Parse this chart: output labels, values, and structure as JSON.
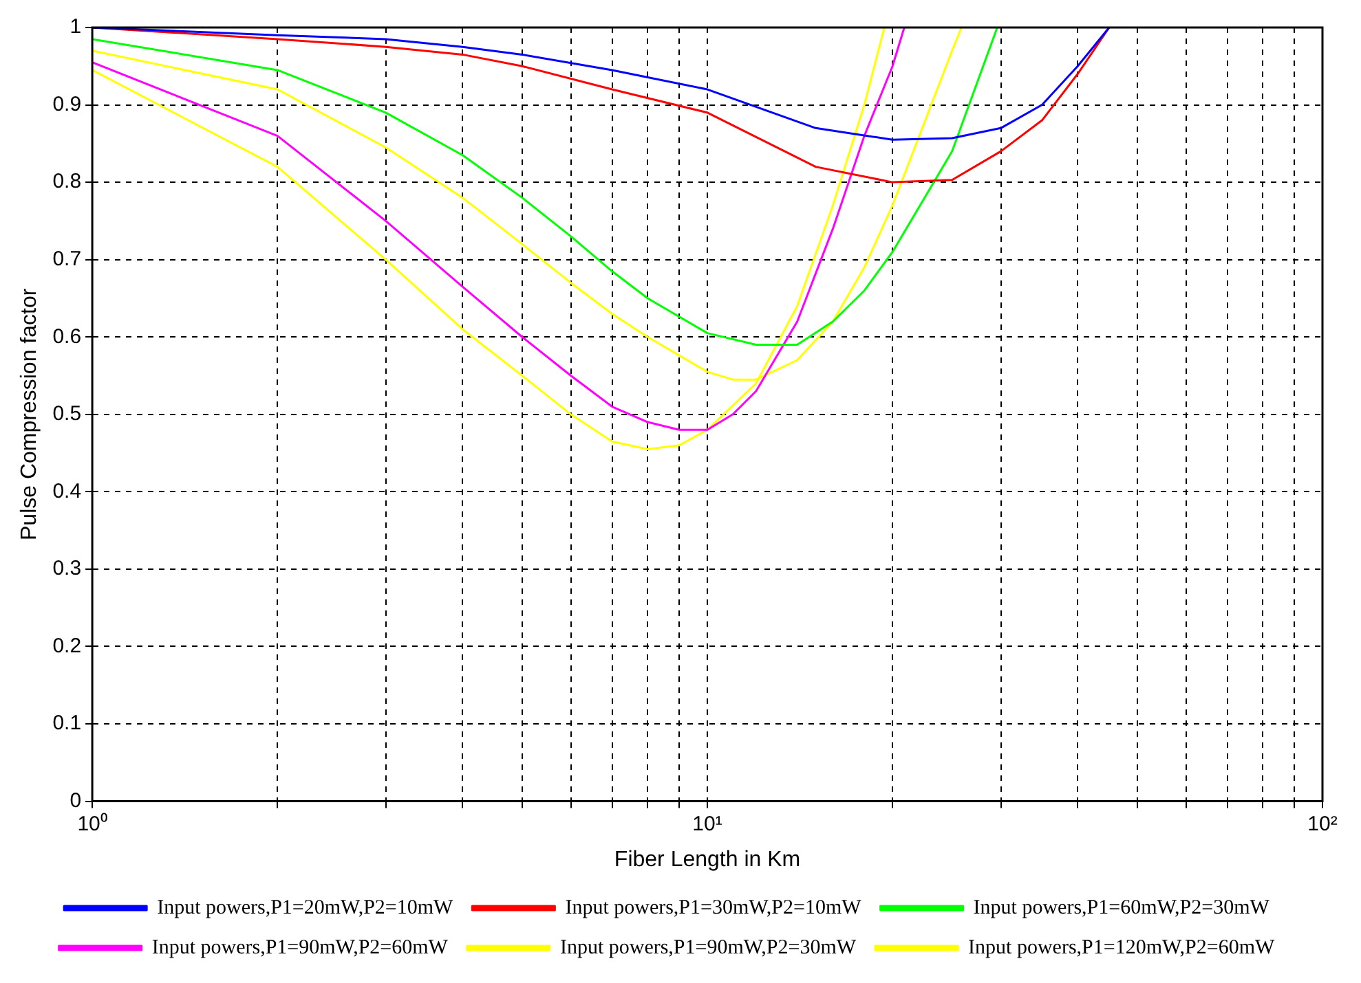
{
  "chart_data": {
    "type": "line",
    "xlabel": "Fiber Length in Km",
    "ylabel": "Pulse Compression factor",
    "log": "x",
    "grid": true,
    "legend": "bottom",
    "marker": "none",
    "line_style": "solid",
    "xlim": [
      1,
      100
    ],
    "ylim": [
      0,
      1
    ],
    "xticks": [
      {
        "value": 1,
        "label": "10⁰"
      },
      {
        "value": 2,
        "label": null
      },
      {
        "value": 3,
        "label": null
      },
      {
        "value": 4,
        "label": null
      },
      {
        "value": 5,
        "label": null
      },
      {
        "value": 6,
        "label": null
      },
      {
        "value": 7,
        "label": null
      },
      {
        "value": 8,
        "label": null
      },
      {
        "value": 9,
        "label": null
      },
      {
        "value": 10,
        "label": "10¹"
      },
      {
        "value": 20,
        "label": null
      },
      {
        "value": 30,
        "label": null
      },
      {
        "value": 40,
        "label": null
      },
      {
        "value": 50,
        "label": null
      },
      {
        "value": 60,
        "label": null
      },
      {
        "value": 70,
        "label": null
      },
      {
        "value": 80,
        "label": null
      },
      {
        "value": 90,
        "label": null
      },
      {
        "value": 100,
        "label": "10²"
      }
    ],
    "yticks": [
      0,
      0.1,
      0.2,
      0.3,
      0.4,
      0.5,
      0.6,
      0.7,
      0.8,
      0.9,
      1
    ],
    "series": [
      {
        "name": "Input powers,P1=20mW,P2=10mW",
        "color": "#0000ff",
        "x": [
          1,
          2,
          3,
          4,
          5,
          7,
          10,
          15,
          20,
          25,
          30,
          35,
          40,
          45
        ],
        "values": [
          1,
          0.99,
          0.985,
          0.975,
          0.965,
          0.945,
          0.92,
          0.87,
          0.855,
          0.857,
          0.87,
          0.9,
          0.95,
          1
        ]
      },
      {
        "name": "Input powers,P1=30mW,P2=10mW",
        "color": "#ff0000",
        "x": [
          1,
          2,
          3,
          4,
          5,
          7,
          10,
          15,
          20,
          25,
          30,
          35,
          40,
          45
        ],
        "values": [
          1,
          0.985,
          0.975,
          0.965,
          0.95,
          0.92,
          0.89,
          0.82,
          0.8,
          0.803,
          0.84,
          0.88,
          0.94,
          1
        ]
      },
      {
        "name": "Input powers,P1=60mW,P2=30mW",
        "color": "#00ff00",
        "x": [
          1,
          2,
          3,
          4,
          5,
          6,
          7,
          8,
          10,
          12,
          14,
          16,
          18,
          20,
          25,
          29.6
        ],
        "values": [
          0.985,
          0.945,
          0.89,
          0.835,
          0.78,
          0.73,
          0.685,
          0.65,
          0.605,
          0.59,
          0.59,
          0.62,
          0.66,
          0.71,
          0.84,
          1
        ]
      },
      {
        "name": "Input powers,P1=90mW,P2=60mW",
        "color": "#ff00ff",
        "x": [
          1,
          2,
          3,
          4,
          5,
          6,
          7,
          8,
          9,
          10,
          11,
          12,
          14,
          16,
          18,
          20,
          20.9
        ],
        "values": [
          0.955,
          0.86,
          0.75,
          0.665,
          0.6,
          0.55,
          0.51,
          0.49,
          0.48,
          0.48,
          0.5,
          0.53,
          0.62,
          0.74,
          0.86,
          0.95,
          1
        ]
      },
      {
        "name": "Input powers,P1=90mW,P2=30mW",
        "color": "#ffff00",
        "x": [
          1,
          2,
          3,
          4,
          5,
          6,
          7,
          8,
          10,
          11,
          12,
          14,
          16,
          18,
          20,
          25,
          25.9
        ],
        "values": [
          0.97,
          0.92,
          0.845,
          0.78,
          0.72,
          0.67,
          0.63,
          0.6,
          0.555,
          0.545,
          0.545,
          0.57,
          0.62,
          0.69,
          0.77,
          0.97,
          1
        ]
      },
      {
        "name": "Input powers,P1=120mW,P2=60mW",
        "color": "#ffff00",
        "x": [
          1,
          2,
          3,
          4,
          5,
          6,
          7,
          8,
          9,
          10,
          12,
          14,
          16,
          18,
          19.4
        ],
        "values": [
          0.945,
          0.82,
          0.7,
          0.61,
          0.55,
          0.5,
          0.465,
          0.455,
          0.46,
          0.48,
          0.54,
          0.64,
          0.77,
          0.9,
          1
        ]
      }
    ]
  }
}
